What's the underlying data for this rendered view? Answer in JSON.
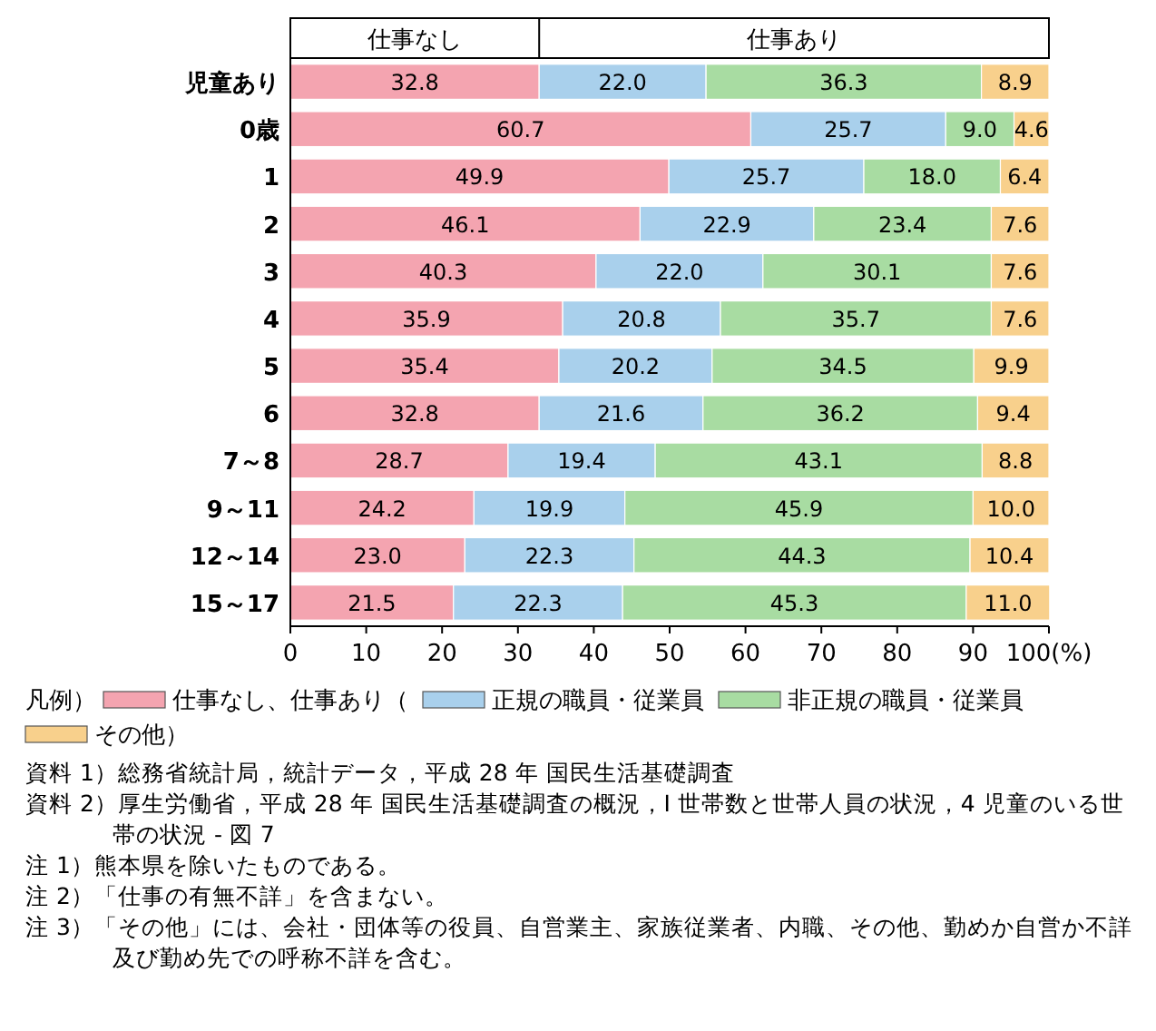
{
  "chart_data": {
    "type": "bar",
    "orientation": "horizontal",
    "stacked": true,
    "categories": [
      "児童あり",
      "0歳",
      "1",
      "2",
      "3",
      "4",
      "5",
      "6",
      "7～8",
      "9～11",
      "12～14",
      "15～17"
    ],
    "series": [
      {
        "name": "仕事なし、仕事あり（",
        "color": "#f4a4b0",
        "values": [
          32.8,
          60.7,
          49.9,
          46.1,
          40.3,
          35.9,
          35.4,
          32.8,
          28.7,
          24.2,
          23.0,
          21.5
        ],
        "value_labels": [
          "32.8",
          "60.7",
          "49.9",
          "46.1",
          "40.3",
          "35.9",
          "35.4",
          "32.8",
          "28.7",
          "24.2",
          "23.0",
          "21.5"
        ]
      },
      {
        "name": "正規の職員・従業員",
        "color": "#a9d0ec",
        "values": [
          22.0,
          25.7,
          25.7,
          22.9,
          22.0,
          20.8,
          20.2,
          21.6,
          19.4,
          19.9,
          22.3,
          22.3
        ],
        "value_labels": [
          "22.0",
          "25.7",
          "25.7",
          "22.9",
          "22.0",
          "20.8",
          "20.2",
          "21.6",
          "19.4",
          "19.9",
          "22.3",
          "22.3"
        ]
      },
      {
        "name": "非正規の職員・従業員",
        "color": "#a8dca2",
        "values": [
          36.3,
          9.0,
          18.0,
          23.4,
          30.1,
          35.7,
          34.5,
          36.2,
          43.1,
          45.9,
          44.3,
          45.3
        ],
        "value_labels": [
          "36.3",
          "9.0",
          "18.0",
          "23.4",
          "30.1",
          "35.7",
          "34.5",
          "36.2",
          "43.1",
          "45.9",
          "44.3",
          "45.3"
        ]
      },
      {
        "name": "その他）",
        "color": "#f8d08c",
        "values": [
          8.9,
          4.6,
          6.4,
          7.6,
          7.6,
          7.6,
          9.9,
          9.4,
          8.8,
          10.0,
          10.4,
          11.0
        ],
        "value_labels": [
          "8.9",
          "4.6",
          "6.4",
          "7.6",
          "7.6",
          "7.6",
          "9.9",
          "9.4",
          "8.8",
          "10.0",
          "10.4",
          "11.0"
        ]
      }
    ],
    "xlim": [
      0,
      100
    ],
    "xticks": [
      0,
      10,
      20,
      30,
      40,
      50,
      60,
      70,
      80,
      90,
      {
        "value": 100,
        "label": "100(%)"
      }
    ],
    "legend": "bottom",
    "legend_title": "凡例）",
    "annotations": [
      "仕事なし",
      "仕事あり",
      "資料 1）総務省統計局，統計データ，平成 28 年 国民生活基礎調査",
      "資料 2）厚生労働省，平成 28 年 国民生活基礎調査の概況，I 世帯数と世帯人員の状況，4 児童のいる世帯の状況 - 図 7",
      "注 1）熊本県を除いたものである。",
      "注 2）「仕事の有無不詳」を含まない。",
      "注 3）「その他」には、会社・団体等の役員、自営業主、家族従業者、内職、その他、勤めか自営か不詳及び勤め先での呼称不詳を含む。"
    ]
  }
}
